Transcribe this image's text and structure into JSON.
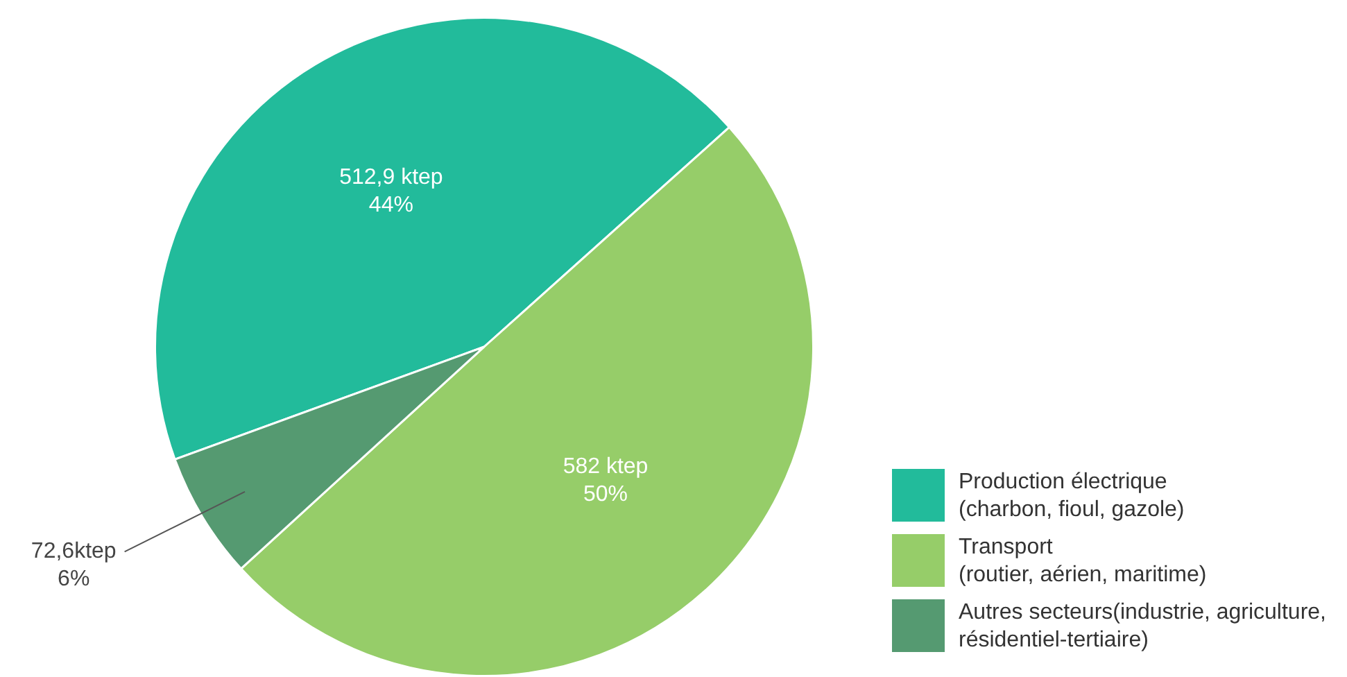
{
  "chart_data": {
    "type": "pie",
    "categories": [
      "Production électrique\n(charbon, fioul, gazole)",
      "Transport\n(routier, aérien, maritime)",
      "Autres secteurs(industrie, agriculture,\nrésidentiel-tertiaire)"
    ],
    "values": [
      512.9,
      582,
      72.6
    ],
    "colors": [
      "#22bb9b",
      "#96cd69",
      "#559a71"
    ],
    "value_labels": [
      "512,9 ktep\n44%",
      "582 ktep\n50%",
      "72,6ktep\n6%"
    ],
    "legend": "bottom right"
  }
}
